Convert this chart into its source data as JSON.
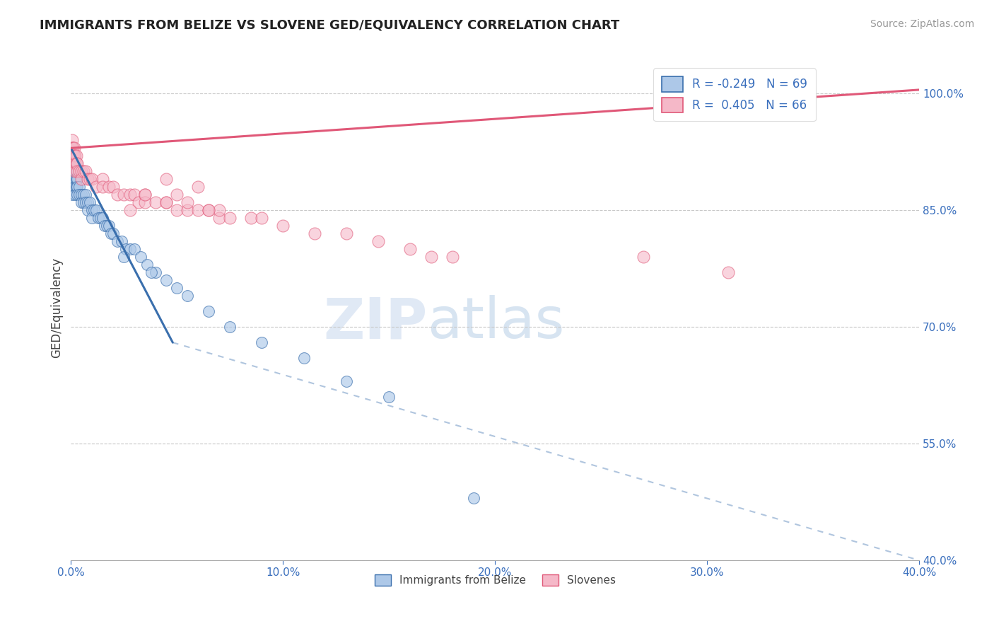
{
  "title": "IMMIGRANTS FROM BELIZE VS SLOVENE GED/EQUIVALENCY CORRELATION CHART",
  "source": "Source: ZipAtlas.com",
  "ylabel": "GED/Equivalency",
  "legend_labels": [
    "Immigrants from Belize",
    "Slovenes"
  ],
  "blue_R": -0.249,
  "blue_N": 69,
  "pink_R": 0.405,
  "pink_N": 66,
  "blue_color": "#adc8e8",
  "pink_color": "#f5b8c8",
  "blue_line_color": "#3a6fad",
  "pink_line_color": "#e05878",
  "watermark_zip": "ZIP",
  "watermark_atlas": "atlas",
  "xlim": [
    0.0,
    40.0
  ],
  "ylim": [
    40.0,
    105.0
  ],
  "xticks": [
    0.0,
    10.0,
    20.0,
    30.0,
    40.0
  ],
  "yticks": [
    40.0,
    55.0,
    70.0,
    85.0,
    100.0
  ],
  "xticklabels": [
    "0.0%",
    "10.0%",
    "20.0%",
    "30.0%",
    "40.0%"
  ],
  "yticklabels": [
    "40.0%",
    "55.0%",
    "70.0%",
    "85.0%",
    "100.0%"
  ],
  "blue_line_x0": 0.0,
  "blue_line_y0": 93.0,
  "blue_line_x1": 4.8,
  "blue_line_y1": 68.0,
  "blue_dash_x0": 4.8,
  "blue_dash_y0": 68.0,
  "blue_dash_x1": 40.0,
  "blue_dash_y1": 40.0,
  "pink_line_x0": 0.0,
  "pink_line_y0": 93.0,
  "pink_line_x1": 40.0,
  "pink_line_y1": 100.5,
  "blue_x": [
    0.05,
    0.05,
    0.05,
    0.05,
    0.05,
    0.05,
    0.05,
    0.08,
    0.08,
    0.1,
    0.1,
    0.1,
    0.12,
    0.12,
    0.15,
    0.15,
    0.15,
    0.2,
    0.2,
    0.2,
    0.2,
    0.25,
    0.25,
    0.3,
    0.3,
    0.3,
    0.4,
    0.4,
    0.5,
    0.5,
    0.6,
    0.6,
    0.7,
    0.7,
    0.8,
    0.8,
    0.9,
    1.0,
    1.0,
    1.1,
    1.2,
    1.3,
    1.4,
    1.5,
    1.6,
    1.7,
    1.8,
    1.9,
    2.0,
    2.2,
    2.4,
    2.6,
    2.8,
    3.0,
    3.3,
    3.6,
    4.0,
    4.5,
    5.0,
    5.5,
    6.5,
    7.5,
    9.0,
    11.0,
    13.0,
    15.0,
    19.0,
    2.5,
    3.8
  ],
  "blue_y": [
    93,
    92,
    91,
    90,
    89,
    88,
    87,
    91,
    90,
    91,
    90,
    89,
    90,
    89,
    90,
    89,
    88,
    90,
    89,
    88,
    87,
    89,
    88,
    89,
    88,
    87,
    88,
    87,
    87,
    86,
    87,
    86,
    87,
    86,
    86,
    85,
    86,
    85,
    84,
    85,
    85,
    84,
    84,
    84,
    83,
    83,
    83,
    82,
    82,
    81,
    81,
    80,
    80,
    80,
    79,
    78,
    77,
    76,
    75,
    74,
    72,
    70,
    68,
    66,
    63,
    61,
    48,
    79,
    77
  ],
  "pink_x": [
    0.05,
    0.05,
    0.05,
    0.08,
    0.08,
    0.1,
    0.1,
    0.12,
    0.15,
    0.15,
    0.15,
    0.2,
    0.2,
    0.2,
    0.25,
    0.25,
    0.3,
    0.3,
    0.4,
    0.5,
    0.5,
    0.6,
    0.7,
    0.8,
    0.9,
    1.0,
    1.2,
    1.5,
    1.5,
    1.8,
    2.0,
    2.2,
    2.5,
    2.8,
    3.0,
    3.2,
    3.5,
    3.5,
    4.0,
    4.5,
    5.0,
    5.5,
    6.0,
    6.5,
    7.0,
    7.5,
    8.5,
    10.0,
    11.5,
    13.0,
    14.5,
    16.0,
    17.0,
    18.0,
    5.5,
    7.0,
    9.0,
    27.0,
    31.0,
    6.0,
    4.5,
    3.5,
    4.5,
    6.5,
    2.8,
    5.0
  ],
  "pink_y": [
    94,
    93,
    92,
    93,
    92,
    93,
    92,
    92,
    93,
    92,
    91,
    92,
    91,
    90,
    92,
    91,
    91,
    90,
    90,
    90,
    89,
    90,
    90,
    89,
    89,
    89,
    88,
    89,
    88,
    88,
    88,
    87,
    87,
    87,
    87,
    86,
    87,
    86,
    86,
    86,
    85,
    85,
    85,
    85,
    84,
    84,
    84,
    83,
    82,
    82,
    81,
    80,
    79,
    79,
    86,
    85,
    84,
    79,
    77,
    88,
    89,
    87,
    86,
    85,
    85,
    87
  ]
}
